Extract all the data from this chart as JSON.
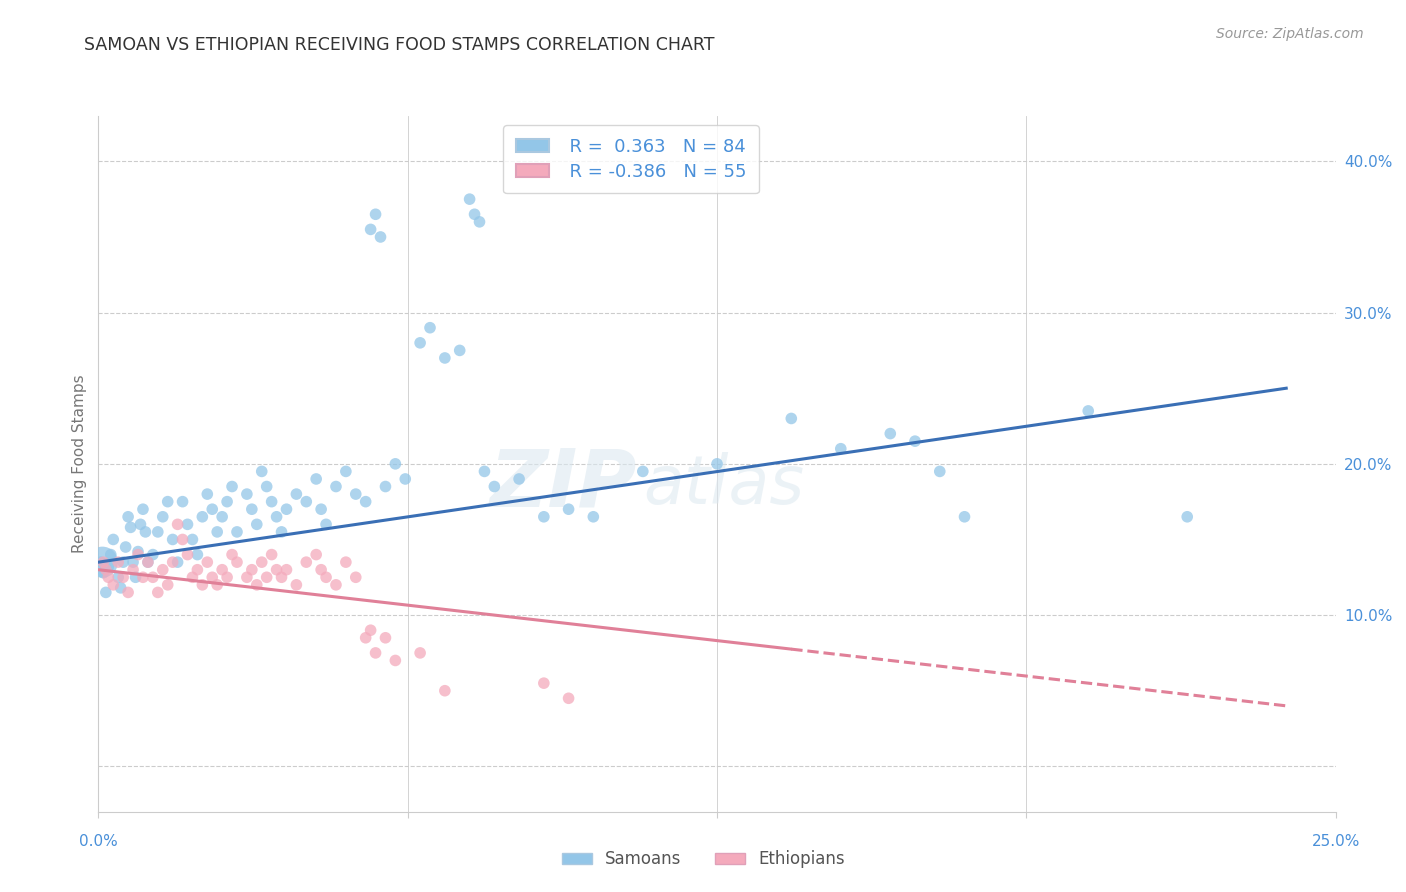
{
  "title": "SAMOAN VS ETHIOPIAN RECEIVING FOOD STAMPS CORRELATION CHART",
  "source": "Source: ZipAtlas.com",
  "ylabel": "Receiving Food Stamps",
  "xlim": [
    0.0,
    25.0
  ],
  "ylim": [
    -3.0,
    43.0
  ],
  "yticks": [
    0.0,
    10.0,
    20.0,
    30.0,
    40.0
  ],
  "ytick_labels": [
    "",
    "10.0%",
    "20.0%",
    "30.0%",
    "40.0%"
  ],
  "xtick_vals": [
    0.0,
    6.25,
    12.5,
    18.75,
    25.0
  ],
  "watermark": "ZIPatlas",
  "legend_r_samoan": "R =  0.363",
  "legend_n_samoan": "N = 84",
  "legend_r_ethiopian": "R = -0.386",
  "legend_n_ethiopian": "N = 55",
  "samoan_color": "#93C6E8",
  "ethiopian_color": "#F4AABC",
  "samoan_line_color": "#3A6FB5",
  "ethiopian_line_color": "#E08098",
  "samoan_points": [
    [
      0.05,
      13.5
    ],
    [
      0.1,
      12.8
    ],
    [
      0.15,
      11.5
    ],
    [
      0.2,
      13.2
    ],
    [
      0.25,
      14.0
    ],
    [
      0.3,
      15.0
    ],
    [
      0.4,
      12.5
    ],
    [
      0.45,
      11.8
    ],
    [
      0.5,
      13.5
    ],
    [
      0.55,
      14.5
    ],
    [
      0.6,
      16.5
    ],
    [
      0.65,
      15.8
    ],
    [
      0.7,
      13.5
    ],
    [
      0.75,
      12.5
    ],
    [
      0.8,
      14.2
    ],
    [
      0.85,
      16.0
    ],
    [
      0.9,
      17.0
    ],
    [
      0.95,
      15.5
    ],
    [
      1.0,
      13.5
    ],
    [
      1.1,
      14.0
    ],
    [
      1.2,
      15.5
    ],
    [
      1.3,
      16.5
    ],
    [
      1.4,
      17.5
    ],
    [
      1.5,
      15.0
    ],
    [
      1.6,
      13.5
    ],
    [
      1.7,
      17.5
    ],
    [
      1.8,
      16.0
    ],
    [
      1.9,
      15.0
    ],
    [
      2.0,
      14.0
    ],
    [
      2.1,
      16.5
    ],
    [
      2.2,
      18.0
    ],
    [
      2.3,
      17.0
    ],
    [
      2.4,
      15.5
    ],
    [
      2.5,
      16.5
    ],
    [
      2.6,
      17.5
    ],
    [
      2.7,
      18.5
    ],
    [
      2.8,
      15.5
    ],
    [
      3.0,
      18.0
    ],
    [
      3.1,
      17.0
    ],
    [
      3.2,
      16.0
    ],
    [
      3.3,
      19.5
    ],
    [
      3.4,
      18.5
    ],
    [
      3.5,
      17.5
    ],
    [
      3.6,
      16.5
    ],
    [
      3.7,
      15.5
    ],
    [
      3.8,
      17.0
    ],
    [
      4.0,
      18.0
    ],
    [
      4.2,
      17.5
    ],
    [
      4.4,
      19.0
    ],
    [
      4.5,
      17.0
    ],
    [
      4.6,
      16.0
    ],
    [
      4.8,
      18.5
    ],
    [
      5.0,
      19.5
    ],
    [
      5.2,
      18.0
    ],
    [
      5.4,
      17.5
    ],
    [
      5.5,
      35.5
    ],
    [
      5.6,
      36.5
    ],
    [
      5.7,
      35.0
    ],
    [
      5.8,
      18.5
    ],
    [
      6.0,
      20.0
    ],
    [
      6.2,
      19.0
    ],
    [
      6.5,
      28.0
    ],
    [
      6.7,
      29.0
    ],
    [
      7.0,
      27.0
    ],
    [
      7.3,
      27.5
    ],
    [
      7.5,
      37.5
    ],
    [
      7.6,
      36.5
    ],
    [
      7.7,
      36.0
    ],
    [
      7.8,
      19.5
    ],
    [
      8.0,
      18.5
    ],
    [
      8.5,
      19.0
    ],
    [
      9.0,
      16.5
    ],
    [
      9.5,
      17.0
    ],
    [
      10.0,
      16.5
    ],
    [
      11.0,
      19.5
    ],
    [
      12.5,
      20.0
    ],
    [
      14.0,
      23.0
    ],
    [
      15.0,
      21.0
    ],
    [
      16.0,
      22.0
    ],
    [
      16.5,
      21.5
    ],
    [
      17.0,
      19.5
    ],
    [
      17.5,
      16.5
    ],
    [
      20.0,
      23.5
    ],
    [
      22.0,
      16.5
    ]
  ],
  "ethiopian_points": [
    [
      0.1,
      13.5
    ],
    [
      0.15,
      13.0
    ],
    [
      0.2,
      12.5
    ],
    [
      0.3,
      12.0
    ],
    [
      0.4,
      13.5
    ],
    [
      0.5,
      12.5
    ],
    [
      0.6,
      11.5
    ],
    [
      0.7,
      13.0
    ],
    [
      0.8,
      14.0
    ],
    [
      0.9,
      12.5
    ],
    [
      1.0,
      13.5
    ],
    [
      1.1,
      12.5
    ],
    [
      1.2,
      11.5
    ],
    [
      1.3,
      13.0
    ],
    [
      1.4,
      12.0
    ],
    [
      1.5,
      13.5
    ],
    [
      1.6,
      16.0
    ],
    [
      1.7,
      15.0
    ],
    [
      1.8,
      14.0
    ],
    [
      1.9,
      12.5
    ],
    [
      2.0,
      13.0
    ],
    [
      2.1,
      12.0
    ],
    [
      2.2,
      13.5
    ],
    [
      2.3,
      12.5
    ],
    [
      2.4,
      12.0
    ],
    [
      2.5,
      13.0
    ],
    [
      2.6,
      12.5
    ],
    [
      2.7,
      14.0
    ],
    [
      2.8,
      13.5
    ],
    [
      3.0,
      12.5
    ],
    [
      3.1,
      13.0
    ],
    [
      3.2,
      12.0
    ],
    [
      3.3,
      13.5
    ],
    [
      3.4,
      12.5
    ],
    [
      3.5,
      14.0
    ],
    [
      3.6,
      13.0
    ],
    [
      3.7,
      12.5
    ],
    [
      3.8,
      13.0
    ],
    [
      4.0,
      12.0
    ],
    [
      4.2,
      13.5
    ],
    [
      4.4,
      14.0
    ],
    [
      4.5,
      13.0
    ],
    [
      4.6,
      12.5
    ],
    [
      4.8,
      12.0
    ],
    [
      5.0,
      13.5
    ],
    [
      5.2,
      12.5
    ],
    [
      5.4,
      8.5
    ],
    [
      5.5,
      9.0
    ],
    [
      5.6,
      7.5
    ],
    [
      5.8,
      8.5
    ],
    [
      6.0,
      7.0
    ],
    [
      6.5,
      7.5
    ],
    [
      7.0,
      5.0
    ],
    [
      9.0,
      5.5
    ],
    [
      9.5,
      4.5
    ]
  ],
  "large_samoan_point": [
    0.08,
    13.5
  ],
  "large_samoan_size": 500,
  "samoan_line": {
    "x0": 0.0,
    "y0": 13.5,
    "x1": 24.0,
    "y1": 25.0
  },
  "ethiopian_line": {
    "x0": 0.0,
    "y0": 13.0,
    "x1": 24.0,
    "y1": 4.0
  },
  "ethiopian_dash_start": 14.0,
  "background_color": "#ffffff",
  "grid_color": "#cccccc",
  "title_color": "#333333",
  "axis_label_color": "#777777",
  "tick_color": "#4A90D9",
  "legend_box_color": "#f0f4f8"
}
